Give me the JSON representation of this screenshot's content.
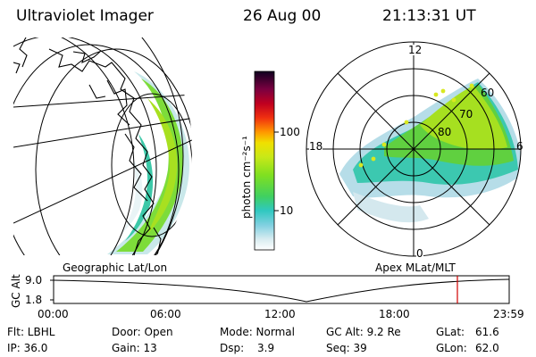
{
  "header": {
    "instrument": "Ultraviolet Imager",
    "date": "26 Aug 00",
    "time": "21:13:31 UT"
  },
  "colorbar": {
    "label": "photon cm⁻²s⁻¹",
    "ticks": [
      "100",
      "10"
    ]
  },
  "polar_plot": {
    "labels": {
      "top": "12",
      "left": "18",
      "right": "6",
      "bottom": "0"
    },
    "lat_labels": [
      "60",
      "70",
      "80"
    ]
  },
  "projections": {
    "left": "Geographic Lat/Lon",
    "right": "Apex MLat/MLT"
  },
  "timeline": {
    "ylabel": "GC Alt",
    "yticks": [
      "9.0",
      "1.8"
    ],
    "xticks": [
      "00:00",
      "06:00",
      "12:00",
      "18:00",
      "23:59"
    ]
  },
  "footer": {
    "filter": "Flt: LBHL",
    "ip": "IP: 36.0",
    "door": "Door: Open",
    "gain": "Gain: 13",
    "mode": "Mode: Normal",
    "dsp_label": "Dsp:",
    "dsp_value": "3.9",
    "gc_alt": "GC Alt: 9.2 Re",
    "seq": "Seq: 39",
    "glat_label": "GLat:",
    "glat_value": "61.6",
    "glon_label": "GLon:",
    "glon_value": "62.0"
  }
}
